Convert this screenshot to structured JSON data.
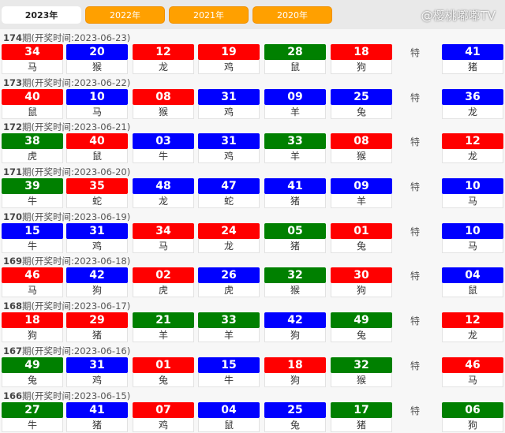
{
  "tabs": [
    "2023年",
    "2022年",
    "2021年",
    "2020年"
  ],
  "active_tab": 0,
  "special_label": "特",
  "colors": {
    "red": "#ff0000",
    "blue": "#0000ff",
    "green": "#008000",
    "tab_orange": "#ffa000"
  },
  "watermark": "@樱桃嘟嘟TV",
  "draws": [
    {
      "period": "174",
      "title_suffix": "期(开奖时间:2023-06-23)",
      "balls": [
        [
          "34",
          "马",
          "red"
        ],
        [
          "20",
          "猴",
          "blue"
        ],
        [
          "12",
          "龙",
          "red"
        ],
        [
          "19",
          "鸡",
          "red"
        ],
        [
          "28",
          "鼠",
          "green"
        ],
        [
          "18",
          "狗",
          "red"
        ]
      ],
      "special": [
        "41",
        "猪",
        "blue"
      ]
    },
    {
      "period": "173",
      "title_suffix": "期(开奖时间:2023-06-22)",
      "balls": [
        [
          "40",
          "鼠",
          "red"
        ],
        [
          "10",
          "马",
          "blue"
        ],
        [
          "08",
          "猴",
          "red"
        ],
        [
          "31",
          "鸡",
          "blue"
        ],
        [
          "09",
          "羊",
          "blue"
        ],
        [
          "25",
          "兔",
          "blue"
        ]
      ],
      "special": [
        "36",
        "龙",
        "blue"
      ]
    },
    {
      "period": "172",
      "title_suffix": "期(开奖时间:2023-06-21)",
      "balls": [
        [
          "38",
          "虎",
          "green"
        ],
        [
          "40",
          "鼠",
          "red"
        ],
        [
          "03",
          "牛",
          "blue"
        ],
        [
          "31",
          "鸡",
          "blue"
        ],
        [
          "33",
          "羊",
          "green"
        ],
        [
          "08",
          "猴",
          "red"
        ]
      ],
      "special": [
        "12",
        "龙",
        "red"
      ]
    },
    {
      "period": "171",
      "title_suffix": "期(开奖时间:2023-06-20)",
      "balls": [
        [
          "39",
          "牛",
          "green"
        ],
        [
          "35",
          "蛇",
          "red"
        ],
        [
          "48",
          "龙",
          "blue"
        ],
        [
          "47",
          "蛇",
          "blue"
        ],
        [
          "41",
          "猪",
          "blue"
        ],
        [
          "09",
          "羊",
          "blue"
        ]
      ],
      "special": [
        "10",
        "马",
        "blue"
      ]
    },
    {
      "period": "170",
      "title_suffix": "期(开奖时间:2023-06-19)",
      "balls": [
        [
          "15",
          "牛",
          "blue"
        ],
        [
          "31",
          "鸡",
          "blue"
        ],
        [
          "34",
          "马",
          "red"
        ],
        [
          "24",
          "龙",
          "red"
        ],
        [
          "05",
          "猪",
          "green"
        ],
        [
          "01",
          "兔",
          "red"
        ]
      ],
      "special": [
        "10",
        "马",
        "blue"
      ]
    },
    {
      "period": "169",
      "title_suffix": "期(开奖时间:2023-06-18)",
      "balls": [
        [
          "46",
          "马",
          "red"
        ],
        [
          "42",
          "狗",
          "blue"
        ],
        [
          "02",
          "虎",
          "red"
        ],
        [
          "26",
          "虎",
          "blue"
        ],
        [
          "32",
          "猴",
          "green"
        ],
        [
          "30",
          "狗",
          "red"
        ]
      ],
      "special": [
        "04",
        "鼠",
        "blue"
      ]
    },
    {
      "period": "168",
      "title_suffix": "期(开奖时间:2023-06-17)",
      "balls": [
        [
          "18",
          "狗",
          "red"
        ],
        [
          "29",
          "猪",
          "red"
        ],
        [
          "21",
          "羊",
          "green"
        ],
        [
          "33",
          "羊",
          "green"
        ],
        [
          "42",
          "狗",
          "blue"
        ],
        [
          "49",
          "兔",
          "green"
        ]
      ],
      "special": [
        "12",
        "龙",
        "red"
      ]
    },
    {
      "period": "167",
      "title_suffix": "期(开奖时间:2023-06-16)",
      "balls": [
        [
          "49",
          "兔",
          "green"
        ],
        [
          "31",
          "鸡",
          "blue"
        ],
        [
          "01",
          "兔",
          "red"
        ],
        [
          "15",
          "牛",
          "blue"
        ],
        [
          "18",
          "狗",
          "red"
        ],
        [
          "32",
          "猴",
          "green"
        ]
      ],
      "special": [
        "46",
        "马",
        "red"
      ]
    },
    {
      "period": "166",
      "title_suffix": "期(开奖时间:2023-06-15)",
      "balls": [
        [
          "27",
          "牛",
          "green"
        ],
        [
          "41",
          "猪",
          "blue"
        ],
        [
          "07",
          "鸡",
          "red"
        ],
        [
          "04",
          "鼠",
          "blue"
        ],
        [
          "25",
          "兔",
          "blue"
        ],
        [
          "17",
          "猪",
          "green"
        ]
      ],
      "special": [
        "06",
        "狗",
        "green"
      ]
    }
  ]
}
